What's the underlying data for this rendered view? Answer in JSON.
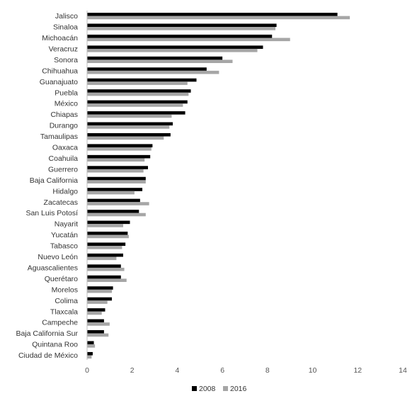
{
  "chart_data": {
    "type": "bar",
    "orientation": "horizontal",
    "categories": [
      "Jalisco",
      "Sinaloa",
      "Michoacán",
      "Veracruz",
      "Sonora",
      "Chihuahua",
      "Guanajuato",
      "Puebla",
      "México",
      "Chiapas",
      "Durango",
      "Tamaulipas",
      "Oaxaca",
      "Coahuila",
      "Guerrero",
      "Baja California",
      "Hidalgo",
      "Zacatecas",
      "San Luis Potosí",
      "Nayarit",
      "Yucatán",
      "Tabasco",
      "Nuevo León",
      "Aguascalientes",
      "Querétaro",
      "Morelos",
      "Colima",
      "Tlaxcala",
      "Campeche",
      "Baja California Sur",
      "Quintana Roo",
      "Ciudad de México"
    ],
    "series": [
      {
        "name": "2008",
        "color": "#000000",
        "values": [
          11.1,
          8.4,
          8.2,
          7.8,
          6.0,
          5.3,
          4.85,
          4.6,
          4.45,
          4.35,
          3.8,
          3.7,
          2.9,
          2.8,
          2.7,
          2.6,
          2.45,
          2.35,
          2.3,
          1.9,
          1.8,
          1.7,
          1.6,
          1.5,
          1.5,
          1.15,
          1.1,
          0.8,
          0.75,
          0.75,
          0.3,
          0.25
        ]
      },
      {
        "name": "2016",
        "color": "#a6a6a6",
        "values": [
          11.65,
          8.35,
          9.0,
          7.55,
          6.45,
          5.85,
          4.45,
          4.5,
          4.25,
          3.75,
          3.65,
          3.4,
          2.85,
          2.55,
          2.5,
          2.6,
          2.1,
          2.75,
          2.6,
          1.6,
          1.85,
          1.55,
          1.3,
          1.65,
          1.75,
          1.1,
          0.9,
          0.65,
          1.0,
          0.95,
          0.35,
          0.2
        ]
      }
    ],
    "xlim": [
      0,
      14
    ],
    "xticks": [
      "0",
      "2",
      "4",
      "6",
      "8",
      "10",
      "12",
      "14"
    ],
    "grid": false,
    "legend": "bottom-center",
    "title": "",
    "xlabel": "",
    "ylabel": ""
  }
}
